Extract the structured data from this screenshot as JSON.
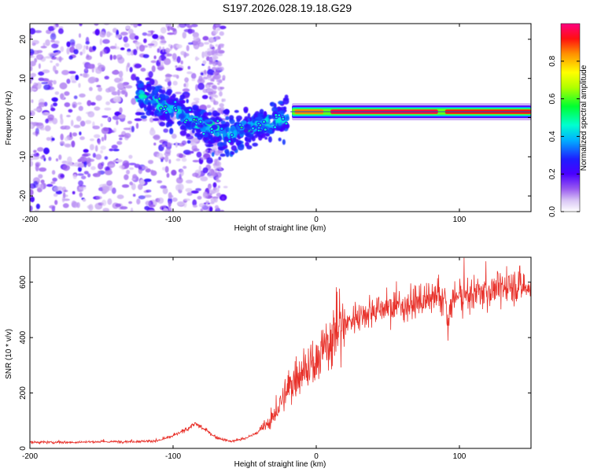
{
  "title": "S197.2026.028.19.18.G29",
  "colors": {
    "spectrogram_line": "#1f4fbf",
    "snr_line": "#e8312a",
    "background": "#ffffff",
    "axis": "#000000"
  },
  "chart_data": [
    {
      "type": "heatmap",
      "name": "spectrogram",
      "xlabel": "Height of straight line (km)",
      "ylabel": "Frequency (Hz)",
      "xlim": [
        -200,
        150
      ],
      "ylim": [
        -24,
        24
      ],
      "xticks": [
        -200,
        -100,
        0,
        100
      ],
      "yticks": [
        -20,
        -10,
        0,
        10,
        20
      ],
      "colorbar": {
        "label": "Normalized spectral amplitude",
        "range": [
          0.0,
          1.0
        ],
        "ticks": [
          0.0,
          0.2,
          0.4,
          0.6,
          0.8
        ],
        "colormap": "rainbow-white"
      },
      "features": {
        "noise_region_x": [
          -200,
          -75
        ],
        "transition_region_x": [
          -125,
          -20
        ],
        "stable_tone_x": [
          -20,
          150
        ],
        "stable_tone_frequency": 1.5,
        "stable_tone_peak_amplitude": 0.95
      }
    },
    {
      "type": "line",
      "name": "snr",
      "xlabel": "Height of straight line (km)",
      "ylabel": "SNR (10 * v/v)",
      "xlim": [
        -200,
        150
      ],
      "ylim": [
        0,
        690
      ],
      "xticks": [
        -200,
        -100,
        0,
        100
      ],
      "yticks": [
        0,
        200,
        400,
        600
      ],
      "series": [
        {
          "name": "SNR",
          "x": [
            -200,
            -175,
            -150,
            -125,
            -110,
            -100,
            -90,
            -85,
            -80,
            -70,
            -60,
            -50,
            -40,
            -30,
            -25,
            -20,
            -15,
            -10,
            -5,
            0,
            5,
            10,
            15,
            20,
            30,
            40,
            50,
            60,
            70,
            80,
            90,
            92,
            95,
            100,
            110,
            120,
            130,
            140,
            150
          ],
          "values": [
            22,
            22,
            24,
            25,
            28,
            45,
            70,
            90,
            75,
            40,
            25,
            35,
            60,
            110,
            160,
            210,
            250,
            290,
            300,
            290,
            360,
            400,
            430,
            450,
            480,
            500,
            510,
            515,
            525,
            535,
            545,
            440,
            540,
            545,
            555,
            570,
            580,
            590,
            575
          ]
        }
      ]
    }
  ]
}
